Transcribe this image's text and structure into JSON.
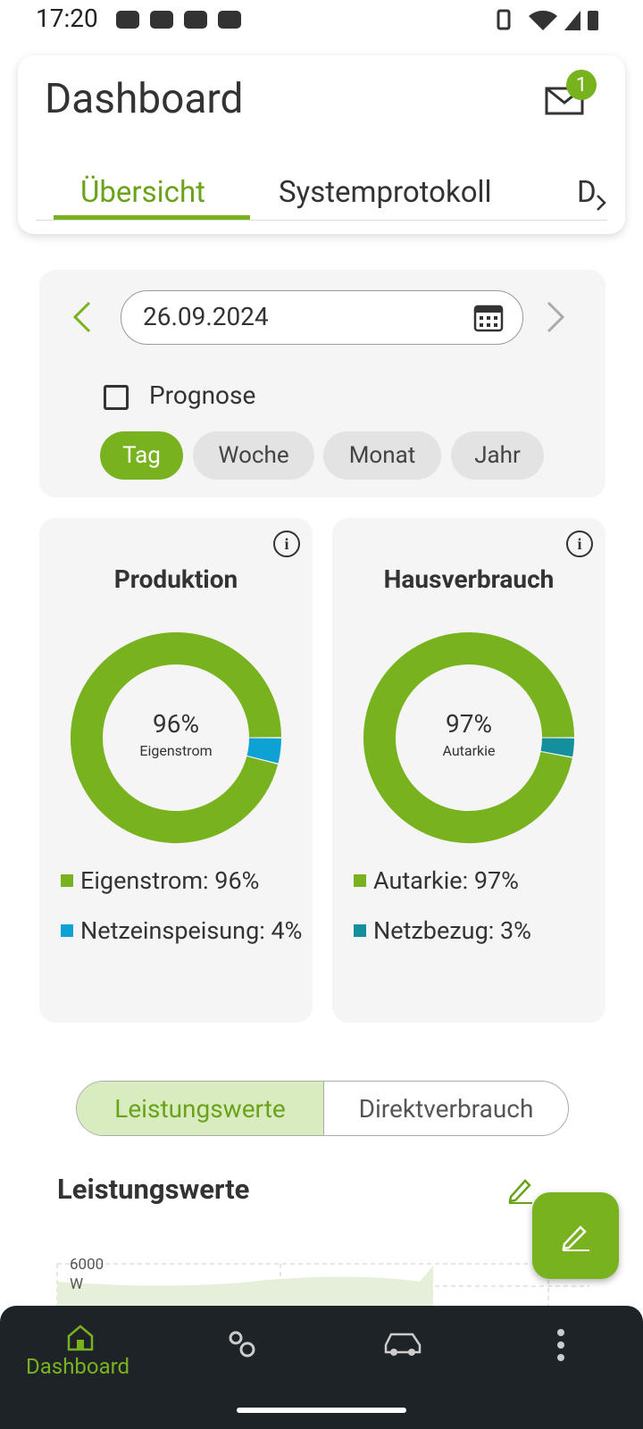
{
  "status_bar": {
    "time": "17:20"
  },
  "header": {
    "title": "Dashboard",
    "badge": "1",
    "tabs": [
      "Übersicht",
      "Systemprotokoll",
      "D"
    ]
  },
  "date_panel": {
    "date": "26.09.2024",
    "checkbox_label": "Prognose",
    "chips": [
      "Tag",
      "Woche",
      "Monat",
      "Jahr"
    ]
  },
  "donuts": [
    {
      "type": "pie",
      "title": "Produktion",
      "center_value": "96%",
      "center_label": "Eigenstrom",
      "segments": [
        {
          "name": "Eigenstrom: 96%",
          "value": 96,
          "color": "#78b31f"
        },
        {
          "name": "Netzeinspeisung: 4%",
          "value": 4,
          "color": "#0da2d3"
        }
      ]
    },
    {
      "type": "pie",
      "title": "Hausverbrauch",
      "center_value": "97%",
      "center_label": "Autarkie",
      "segments": [
        {
          "name": "Autarkie: 97%",
          "value": 97,
          "color": "#78b31f"
        },
        {
          "name": "Netzbezug: 3%",
          "value": 3,
          "color": "#138f9d"
        }
      ]
    }
  ],
  "toggle": [
    "Leistungswerte",
    "Direktverbrauch"
  ],
  "section": {
    "title": "Leistungswerte",
    "y_tick": "6000",
    "y_unit": "W"
  },
  "bottom_nav": {
    "active_label": "Dashboard"
  }
}
